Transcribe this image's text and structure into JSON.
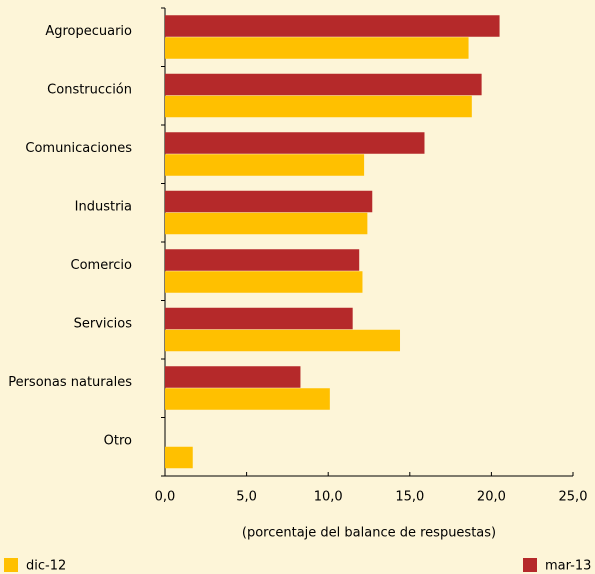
{
  "chart_data": {
    "type": "hbar",
    "categories": [
      "Agropecuario",
      "Construcción",
      "Comunicaciones",
      "Industria",
      "Comercio",
      "Servicios",
      "Personas naturales",
      "Otro"
    ],
    "series": [
      {
        "name": "dic-12",
        "color": "#ffc000",
        "values": [
          18.6,
          18.8,
          12.2,
          12.4,
          12.1,
          14.4,
          10.1,
          1.7
        ]
      },
      {
        "name": "mar-13",
        "color": "#b5292a",
        "values": [
          20.5,
          19.4,
          15.9,
          12.7,
          11.9,
          11.5,
          8.3,
          null
        ]
      }
    ],
    "xlim": [
      0,
      25
    ],
    "xticks": [
      {
        "value": 0,
        "label": "0,0"
      },
      {
        "value": 5,
        "label": "5,0"
      },
      {
        "value": 10,
        "label": "10,0"
      },
      {
        "value": 15,
        "label": "15,0"
      },
      {
        "value": 20,
        "label": "20,0"
      },
      {
        "value": 25,
        "label": "25,0"
      }
    ],
    "xlabel": "(porcentaje del balance de respuestas)",
    "legend": "bottom"
  }
}
